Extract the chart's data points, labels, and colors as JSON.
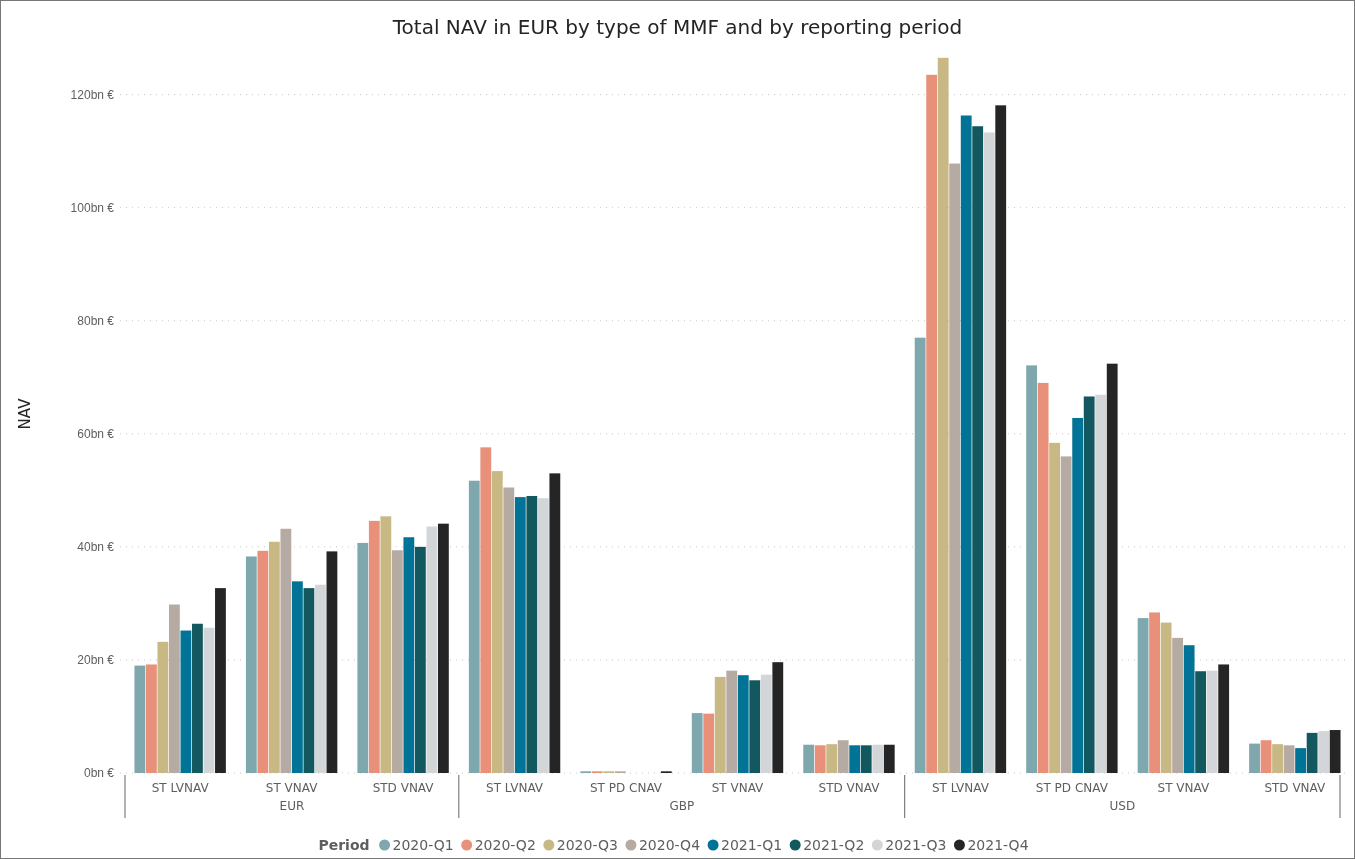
{
  "chart_data": {
    "type": "bar",
    "title": "Total NAV in EUR by type of MMF and by reporting period",
    "ylabel": "NAV",
    "legend_title": "Period",
    "categories": [
      "ST LVNAV",
      "ST VNAV",
      "STD VNAV",
      "ST LVNAV",
      "ST PD CNAV",
      "ST VNAV",
      "STD VNAV",
      "ST LVNAV",
      "ST PD CNAV",
      "ST VNAV",
      "STD VNAV"
    ],
    "series": [
      {
        "name": "2020-Q1",
        "color": "#7fa8ae",
        "values": [
          19.0,
          38.3,
          40.7,
          51.7,
          0.3,
          10.6,
          5.0,
          77.0,
          72.1,
          27.4,
          5.2
        ]
      },
      {
        "name": "2020-Q2",
        "color": "#e8907a",
        "values": [
          19.2,
          39.3,
          44.6,
          57.6,
          0.3,
          10.5,
          4.9,
          123.5,
          69.0,
          28.4,
          5.8
        ]
      },
      {
        "name": "2020-Q3",
        "color": "#c8b883",
        "values": [
          23.2,
          40.9,
          45.4,
          53.4,
          0.3,
          17.0,
          5.1,
          126.5,
          58.4,
          26.6,
          5.1
        ]
      },
      {
        "name": "2020-Q4",
        "color": "#b5aba3",
        "values": [
          29.8,
          43.2,
          39.4,
          50.5,
          0.3,
          18.1,
          5.8,
          107.8,
          56.0,
          23.9,
          4.9
        ]
      },
      {
        "name": "2021-Q1",
        "color": "#007396",
        "values": [
          25.2,
          33.9,
          41.7,
          48.8,
          null,
          17.3,
          4.9,
          116.3,
          62.8,
          22.6,
          4.4
        ]
      },
      {
        "name": "2021-Q2",
        "color": "#13585f",
        "values": [
          26.4,
          32.7,
          40.0,
          49.0,
          null,
          16.4,
          4.9,
          114.4,
          66.6,
          18.0,
          7.1
        ]
      },
      {
        "name": "2021-Q3",
        "color": "#d2d6d8",
        "values": [
          25.7,
          33.3,
          43.6,
          48.6,
          null,
          17.4,
          5.0,
          113.3,
          66.9,
          18.1,
          7.4
        ]
      },
      {
        "name": "2021-Q4",
        "color": "#252525",
        "values": [
          32.7,
          39.2,
          44.1,
          53.0,
          0.3,
          19.6,
          5.0,
          118.1,
          72.4,
          19.2,
          7.6
        ]
      }
    ],
    "annotations": [
      "EUR",
      "GBP",
      "USD"
    ],
    "ylim": [
      0,
      127
    ],
    "yticks": [
      {
        "value": 0,
        "label": "0bn €"
      },
      {
        "value": 20,
        "label": "20bn €"
      },
      {
        "value": 40,
        "label": "40bn €"
      },
      {
        "value": 60,
        "label": "60bn €"
      },
      {
        "value": 80,
        "label": "80bn €"
      },
      {
        "value": 100,
        "label": "100bn €"
      },
      {
        "value": 120,
        "label": "120bn €"
      }
    ],
    "grid": "y",
    "legend": "bottom"
  }
}
